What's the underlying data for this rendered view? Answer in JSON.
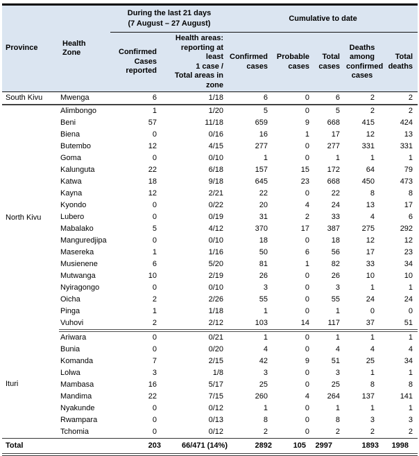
{
  "header": {
    "province": "Province",
    "health_zone": "Health Zone",
    "group_last21": "During the last 21 days\n(7 August – 27 August)",
    "group_cumulative": "Cumulative to date",
    "col_confirmed_reported": "Confirmed\nCases\nreported",
    "col_health_areas": "Health areas:\nreporting at least\n1 case /\nTotal areas in\nzone",
    "col_confirmed_cases": "Confirmed\ncases",
    "col_probable_cases": "Probable\ncases",
    "col_total_cases": "Total\ncases",
    "col_deaths_confirmed": "Deaths\namong\nconfirmed\ncases",
    "col_total_deaths": "Total\ndeaths"
  },
  "sections": [
    {
      "province": "South Kivu",
      "boundary": "sec-solid-end",
      "rows": [
        {
          "zone": "Mwenga",
          "values": [
            "6",
            "1/18",
            "6",
            "0",
            "6",
            "2",
            "2"
          ]
        }
      ]
    },
    {
      "province": "North Kivu",
      "boundary": "sec-double-end",
      "rows": [
        {
          "zone": "Alimbongo",
          "values": [
            "1",
            "1/20",
            "5",
            "0",
            "5",
            "2",
            "2"
          ]
        },
        {
          "zone": "Beni",
          "values": [
            "57",
            "11/18",
            "659",
            "9",
            "668",
            "415",
            "424"
          ]
        },
        {
          "zone": "Biena",
          "values": [
            "0",
            "0/16",
            "16",
            "1",
            "17",
            "12",
            "13"
          ]
        },
        {
          "zone": "Butembo",
          "values": [
            "12",
            "4/15",
            "277",
            "0",
            "277",
            "331",
            "331"
          ]
        },
        {
          "zone": "Goma",
          "values": [
            "0",
            "0/10",
            "1",
            "0",
            "1",
            "1",
            "1"
          ]
        },
        {
          "zone": "Kalunguta",
          "values": [
            "22",
            "6/18",
            "157",
            "15",
            "172",
            "64",
            "79"
          ]
        },
        {
          "zone": "Katwa",
          "values": [
            "18",
            "9/18",
            "645",
            "23",
            "668",
            "450",
            "473"
          ]
        },
        {
          "zone": "Kayna",
          "values": [
            "12",
            "2/21",
            "22",
            "0",
            "22",
            "8",
            "8"
          ]
        },
        {
          "zone": "Kyondo",
          "values": [
            "0",
            "0/22",
            "20",
            "4",
            "24",
            "13",
            "17"
          ]
        },
        {
          "zone": "Lubero",
          "values": [
            "0",
            "0/19",
            "31",
            "2",
            "33",
            "4",
            "6"
          ]
        },
        {
          "zone": "Mabalako",
          "values": [
            "5",
            "4/12",
            "370",
            "17",
            "387",
            "275",
            "292"
          ]
        },
        {
          "zone": "Manguredjipa",
          "values": [
            "0",
            "0/10",
            "18",
            "0",
            "18",
            "12",
            "12"
          ]
        },
        {
          "zone": "Masereka",
          "values": [
            "1",
            "1/16",
            "50",
            "6",
            "56",
            "17",
            "23"
          ]
        },
        {
          "zone": "Musienene",
          "values": [
            "6",
            "5/20",
            "81",
            "1",
            "82",
            "33",
            "34"
          ]
        },
        {
          "zone": "Mutwanga",
          "values": [
            "10",
            "2/19",
            "26",
            "0",
            "26",
            "10",
            "10"
          ]
        },
        {
          "zone": "Nyiragongo",
          "values": [
            "0",
            "0/10",
            "3",
            "0",
            "3",
            "1",
            "1"
          ]
        },
        {
          "zone": "Oicha",
          "values": [
            "2",
            "2/26",
            "55",
            "0",
            "55",
            "24",
            "24"
          ]
        },
        {
          "zone": "Pinga",
          "values": [
            "1",
            "1/18",
            "1",
            "0",
            "1",
            "0",
            "0"
          ]
        },
        {
          "zone": "Vuhovi",
          "values": [
            "2",
            "2/12",
            "103",
            "14",
            "117",
            "37",
            "51"
          ]
        }
      ]
    },
    {
      "province": "Ituri",
      "boundary": null,
      "rows": [
        {
          "zone": "Ariwara",
          "values": [
            "0",
            "0/21",
            "1",
            "0",
            "1",
            "1",
            "1"
          ]
        },
        {
          "zone": "Bunia",
          "values": [
            "0",
            "0/20",
            "4",
            "0",
            "4",
            "4",
            "4"
          ]
        },
        {
          "zone": "Komanda",
          "values": [
            "7",
            "2/15",
            "42",
            "9",
            "51",
            "25",
            "34"
          ]
        },
        {
          "zone": "Lolwa",
          "values": [
            "3",
            "1/8",
            "3",
            "0",
            "3",
            "1",
            "1"
          ]
        },
        {
          "zone": "Mambasa",
          "values": [
            "16",
            "5/17",
            "25",
            "0",
            "25",
            "8",
            "8"
          ]
        },
        {
          "zone": "Mandima",
          "values": [
            "22",
            "7/15",
            "260",
            "4",
            "264",
            "137",
            "141"
          ]
        },
        {
          "zone": "Nyakunde",
          "values": [
            "0",
            "0/12",
            "1",
            "0",
            "1",
            "1",
            "1"
          ]
        },
        {
          "zone": "Rwampara",
          "values": [
            "0",
            "0/13",
            "8",
            "0",
            "8",
            "3",
            "3"
          ]
        },
        {
          "zone": "Tchomia",
          "values": [
            "0",
            "0/12",
            "2",
            "0",
            "2",
            "2",
            "2"
          ]
        }
      ]
    }
  ],
  "total": {
    "label": "Total",
    "values": [
      "203",
      "66/471 (14%)",
      "2892",
      "105",
      "2997",
      "1893",
      "1998"
    ]
  },
  "colors": {
    "header_bg": "#dbe5f1",
    "top_border": "#000000",
    "section_rule": "#404040"
  }
}
